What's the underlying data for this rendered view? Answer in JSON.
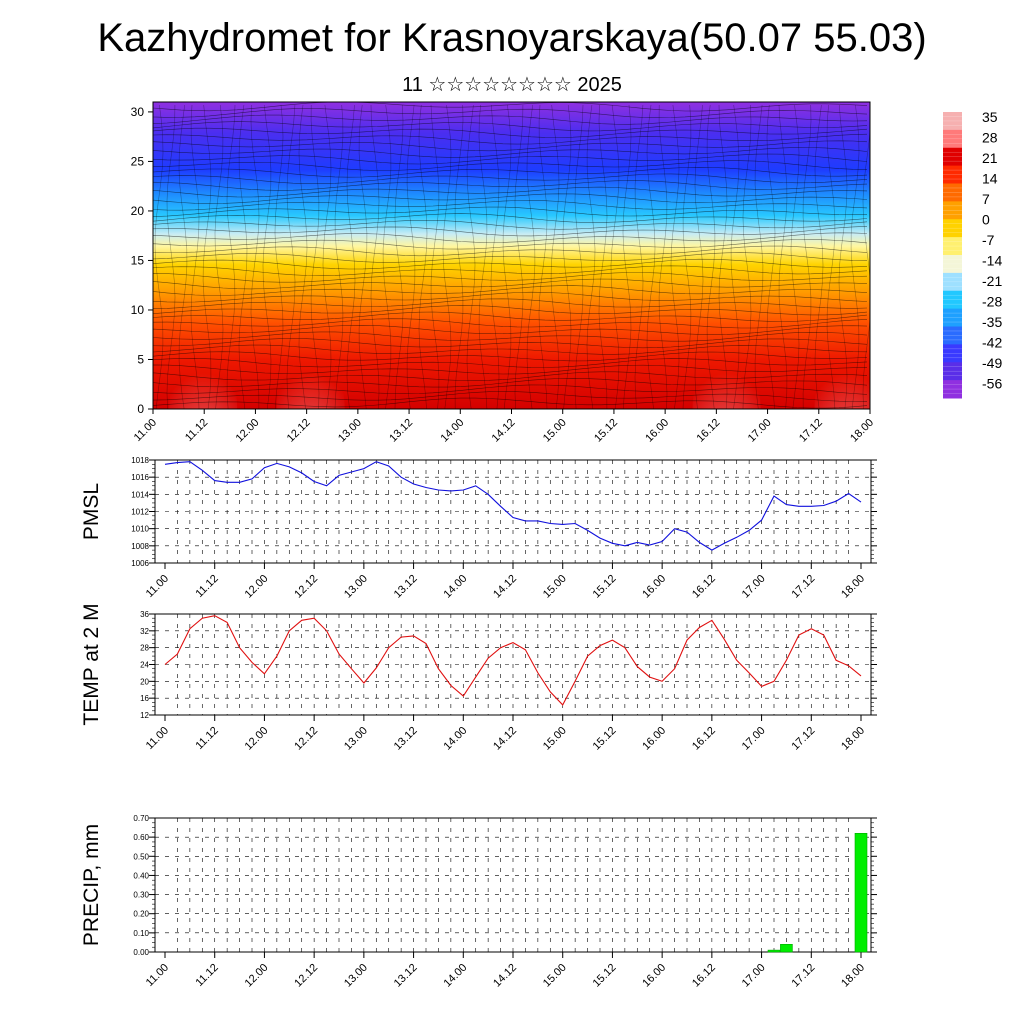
{
  "header": {
    "title": "Kazhydromet for Krasnoyarskaya(50.07 55.03)",
    "subtitle": "11 ☆☆☆☆☆☆☆☆ 2025"
  },
  "colors": {
    "pmsl_line": "#1010dd",
    "temp_line": "#e01010",
    "precip_bar": "#00ee00",
    "colorbar": [
      "#9030e0",
      "#5a2ee8",
      "#3a3aff",
      "#2a6cff",
      "#1ea0ff",
      "#22c8ff",
      "#9ee0ff",
      "#f4f6d8",
      "#fff070",
      "#ffd200",
      "#ffa000",
      "#ff6a00",
      "#ff2a00",
      "#e00000",
      "#ff7a7a",
      "#f6b0b0"
    ]
  },
  "chart_data": [
    {
      "type": "heatmap",
      "title": "",
      "xlabel": "",
      "ylabel": "",
      "x_ticks": [
        "11.00",
        "11.12",
        "12.00",
        "12.12",
        "13.00",
        "13.12",
        "14.00",
        "14.12",
        "15.00",
        "15.12",
        "16.00",
        "16.12",
        "17.00",
        "17.12",
        "18.00"
      ],
      "y_ticks": [
        "0",
        "5",
        "10",
        "15",
        "20",
        "25",
        "30"
      ],
      "ylim": [
        0,
        31
      ],
      "colorbar_labels": [
        "35",
        "28",
        "21",
        "14",
        "7",
        "0",
        "-7",
        "-14",
        "-21",
        "-28",
        "-35",
        "-42",
        "-49",
        "-56"
      ],
      "note_overlay": "wind streamlines"
    },
    {
      "type": "line",
      "ylabel": "PMSL",
      "ylim": [
        1006,
        1018
      ],
      "y_ticks": [
        "1018",
        "1016",
        "1014",
        "1012",
        "1010",
        "1008",
        "1006"
      ],
      "x_ticks": [
        "11.00",
        "11.12",
        "12.00",
        "12.12",
        "13.00",
        "13.12",
        "14.00",
        "14.12",
        "15.00",
        "15.12",
        "16.00",
        "16.12",
        "17.00",
        "17.12",
        "18.00"
      ],
      "series": [
        {
          "values": [
            1017.5,
            1017.7,
            1017.8,
            1016.8,
            1015.6,
            1015.4,
            1015.4,
            1015.8,
            1017.1,
            1017.6,
            1017.2,
            1016.5,
            1015.5,
            1015.0,
            1016.2,
            1016.6,
            1017.0,
            1017.8,
            1017.3,
            1016.0,
            1015.2,
            1014.8,
            1014.5,
            1014.4,
            1014.5,
            1015.0,
            1014.0,
            1012.6,
            1011.3,
            1010.9,
            1010.9,
            1010.6,
            1010.5,
            1010.6,
            1009.8,
            1008.9,
            1008.3,
            1008.0,
            1008.4,
            1008.1,
            1008.5,
            1010.0,
            1009.6,
            1008.4,
            1007.5,
            1008.3,
            1009.0,
            1009.8,
            1011.0,
            1013.8,
            1012.8,
            1012.6,
            1012.6,
            1012.7,
            1013.2,
            1014.1,
            1013.1
          ]
        }
      ]
    },
    {
      "type": "line",
      "ylabel": "TEMP at 2 M",
      "ylim": [
        12,
        36
      ],
      "y_ticks": [
        "36",
        "32",
        "28",
        "24",
        "20",
        "16",
        "12"
      ],
      "x_ticks": [
        "11.00",
        "11.12",
        "12.00",
        "12.12",
        "13.00",
        "13.12",
        "14.00",
        "14.12",
        "15.00",
        "15.12",
        "16.00",
        "16.12",
        "17.00",
        "17.12",
        "18.00"
      ],
      "series": [
        {
          "values": [
            24.0,
            26.5,
            32.5,
            35.0,
            35.6,
            34.0,
            28.0,
            24.5,
            21.8,
            26.0,
            32.0,
            34.5,
            35.0,
            32.0,
            26.5,
            23.0,
            19.6,
            23.2,
            28.0,
            30.5,
            30.8,
            29.0,
            23.0,
            19.0,
            16.5,
            21.0,
            25.5,
            28.0,
            29.2,
            27.5,
            22.0,
            17.5,
            14.4,
            20.0,
            26.0,
            28.5,
            29.8,
            28.0,
            23.5,
            21.0,
            20.0,
            23.0,
            29.8,
            32.8,
            34.5,
            30.0,
            25.0,
            22.0,
            18.8,
            20.0,
            25.0,
            31.0,
            32.5,
            31.0,
            25.0,
            23.7,
            21.3
          ]
        }
      ]
    },
    {
      "type": "bar",
      "ylabel": "PRECIP, mm",
      "ylim": [
        0,
        0.7
      ],
      "y_ticks": [
        "0.70",
        "0.60",
        "0.50",
        "0.40",
        "0.30",
        "0.20",
        "0.10",
        "0.00"
      ],
      "x_ticks": [
        "11.00",
        "11.12",
        "12.00",
        "12.12",
        "13.00",
        "13.12",
        "14.00",
        "14.12",
        "15.00",
        "15.12",
        "16.00",
        "16.12",
        "17.00",
        "17.12",
        "18.00"
      ],
      "bars": [
        {
          "x": "17.03",
          "value": 0.01
        },
        {
          "x": "17.06",
          "value": 0.04
        },
        {
          "x": "18.00",
          "value": 0.62
        }
      ]
    }
  ]
}
